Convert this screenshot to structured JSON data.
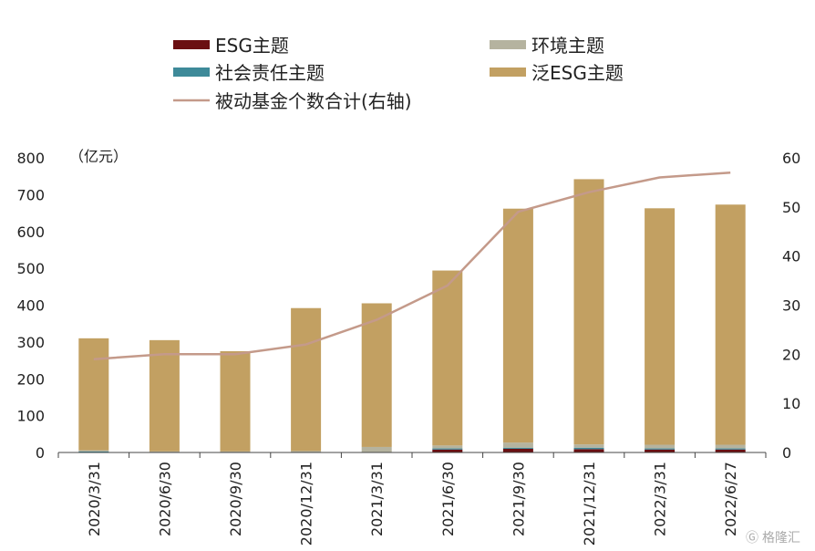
{
  "chart_data": {
    "type": "bar",
    "stacked": true,
    "categories": [
      "2020/3/31",
      "2020/6/30",
      "2020/9/30",
      "2020/12/31",
      "2021/3/31",
      "2021/6/30",
      "2021/9/30",
      "2021/12/31",
      "2022/3/31",
      "2022/6/27"
    ],
    "series": [
      {
        "name": "ESG主题",
        "kind": "bar",
        "color": "#6b0f12",
        "values": [
          0,
          0,
          0,
          0,
          0,
          8,
          10,
          9,
          8,
          8
        ]
      },
      {
        "name": "社会责任主题",
        "kind": "bar",
        "color": "#3e8a99",
        "values": [
          3,
          1,
          1,
          1,
          1,
          3,
          3,
          4,
          3,
          3
        ]
      },
      {
        "name": "环境主题",
        "kind": "bar",
        "color": "#b5b39f",
        "values": [
          3,
          2,
          2,
          3,
          14,
          8,
          14,
          9,
          10,
          10
        ]
      },
      {
        "name": "泛ESG主题",
        "kind": "bar",
        "color": "#c2a062",
        "values": [
          304,
          302,
          272,
          388,
          390,
          475,
          635,
          720,
          642,
          652
        ]
      },
      {
        "name": "被动基金个数合计(右轴)",
        "kind": "line",
        "axis": "right",
        "color": "#c49a8a",
        "values": [
          19,
          20,
          20,
          22,
          27,
          34,
          49,
          53,
          56,
          57
        ]
      }
    ],
    "left_axis": {
      "unit_label": "（亿元）",
      "ylim": [
        0,
        800
      ],
      "ticks": [
        0,
        100,
        200,
        300,
        400,
        500,
        600,
        700,
        800
      ]
    },
    "right_axis": {
      "ylim": [
        0,
        60
      ],
      "ticks": [
        0,
        10,
        20,
        30,
        40,
        50,
        60
      ]
    },
    "legend": {
      "placement": "top",
      "entries": [
        {
          "label": "ESG主题",
          "kind": "bar",
          "color": "#6b0f12"
        },
        {
          "label": "环境主题",
          "kind": "bar",
          "color": "#b5b39f"
        },
        {
          "label": "社会责任主题",
          "kind": "bar",
          "color": "#3e8a99"
        },
        {
          "label": "泛ESG主题",
          "kind": "bar",
          "color": "#c2a062"
        },
        {
          "label": "被动基金个数合计(右轴)",
          "kind": "line",
          "color": "#c49a8a"
        }
      ]
    },
    "grid": false
  },
  "watermark": "格隆汇"
}
